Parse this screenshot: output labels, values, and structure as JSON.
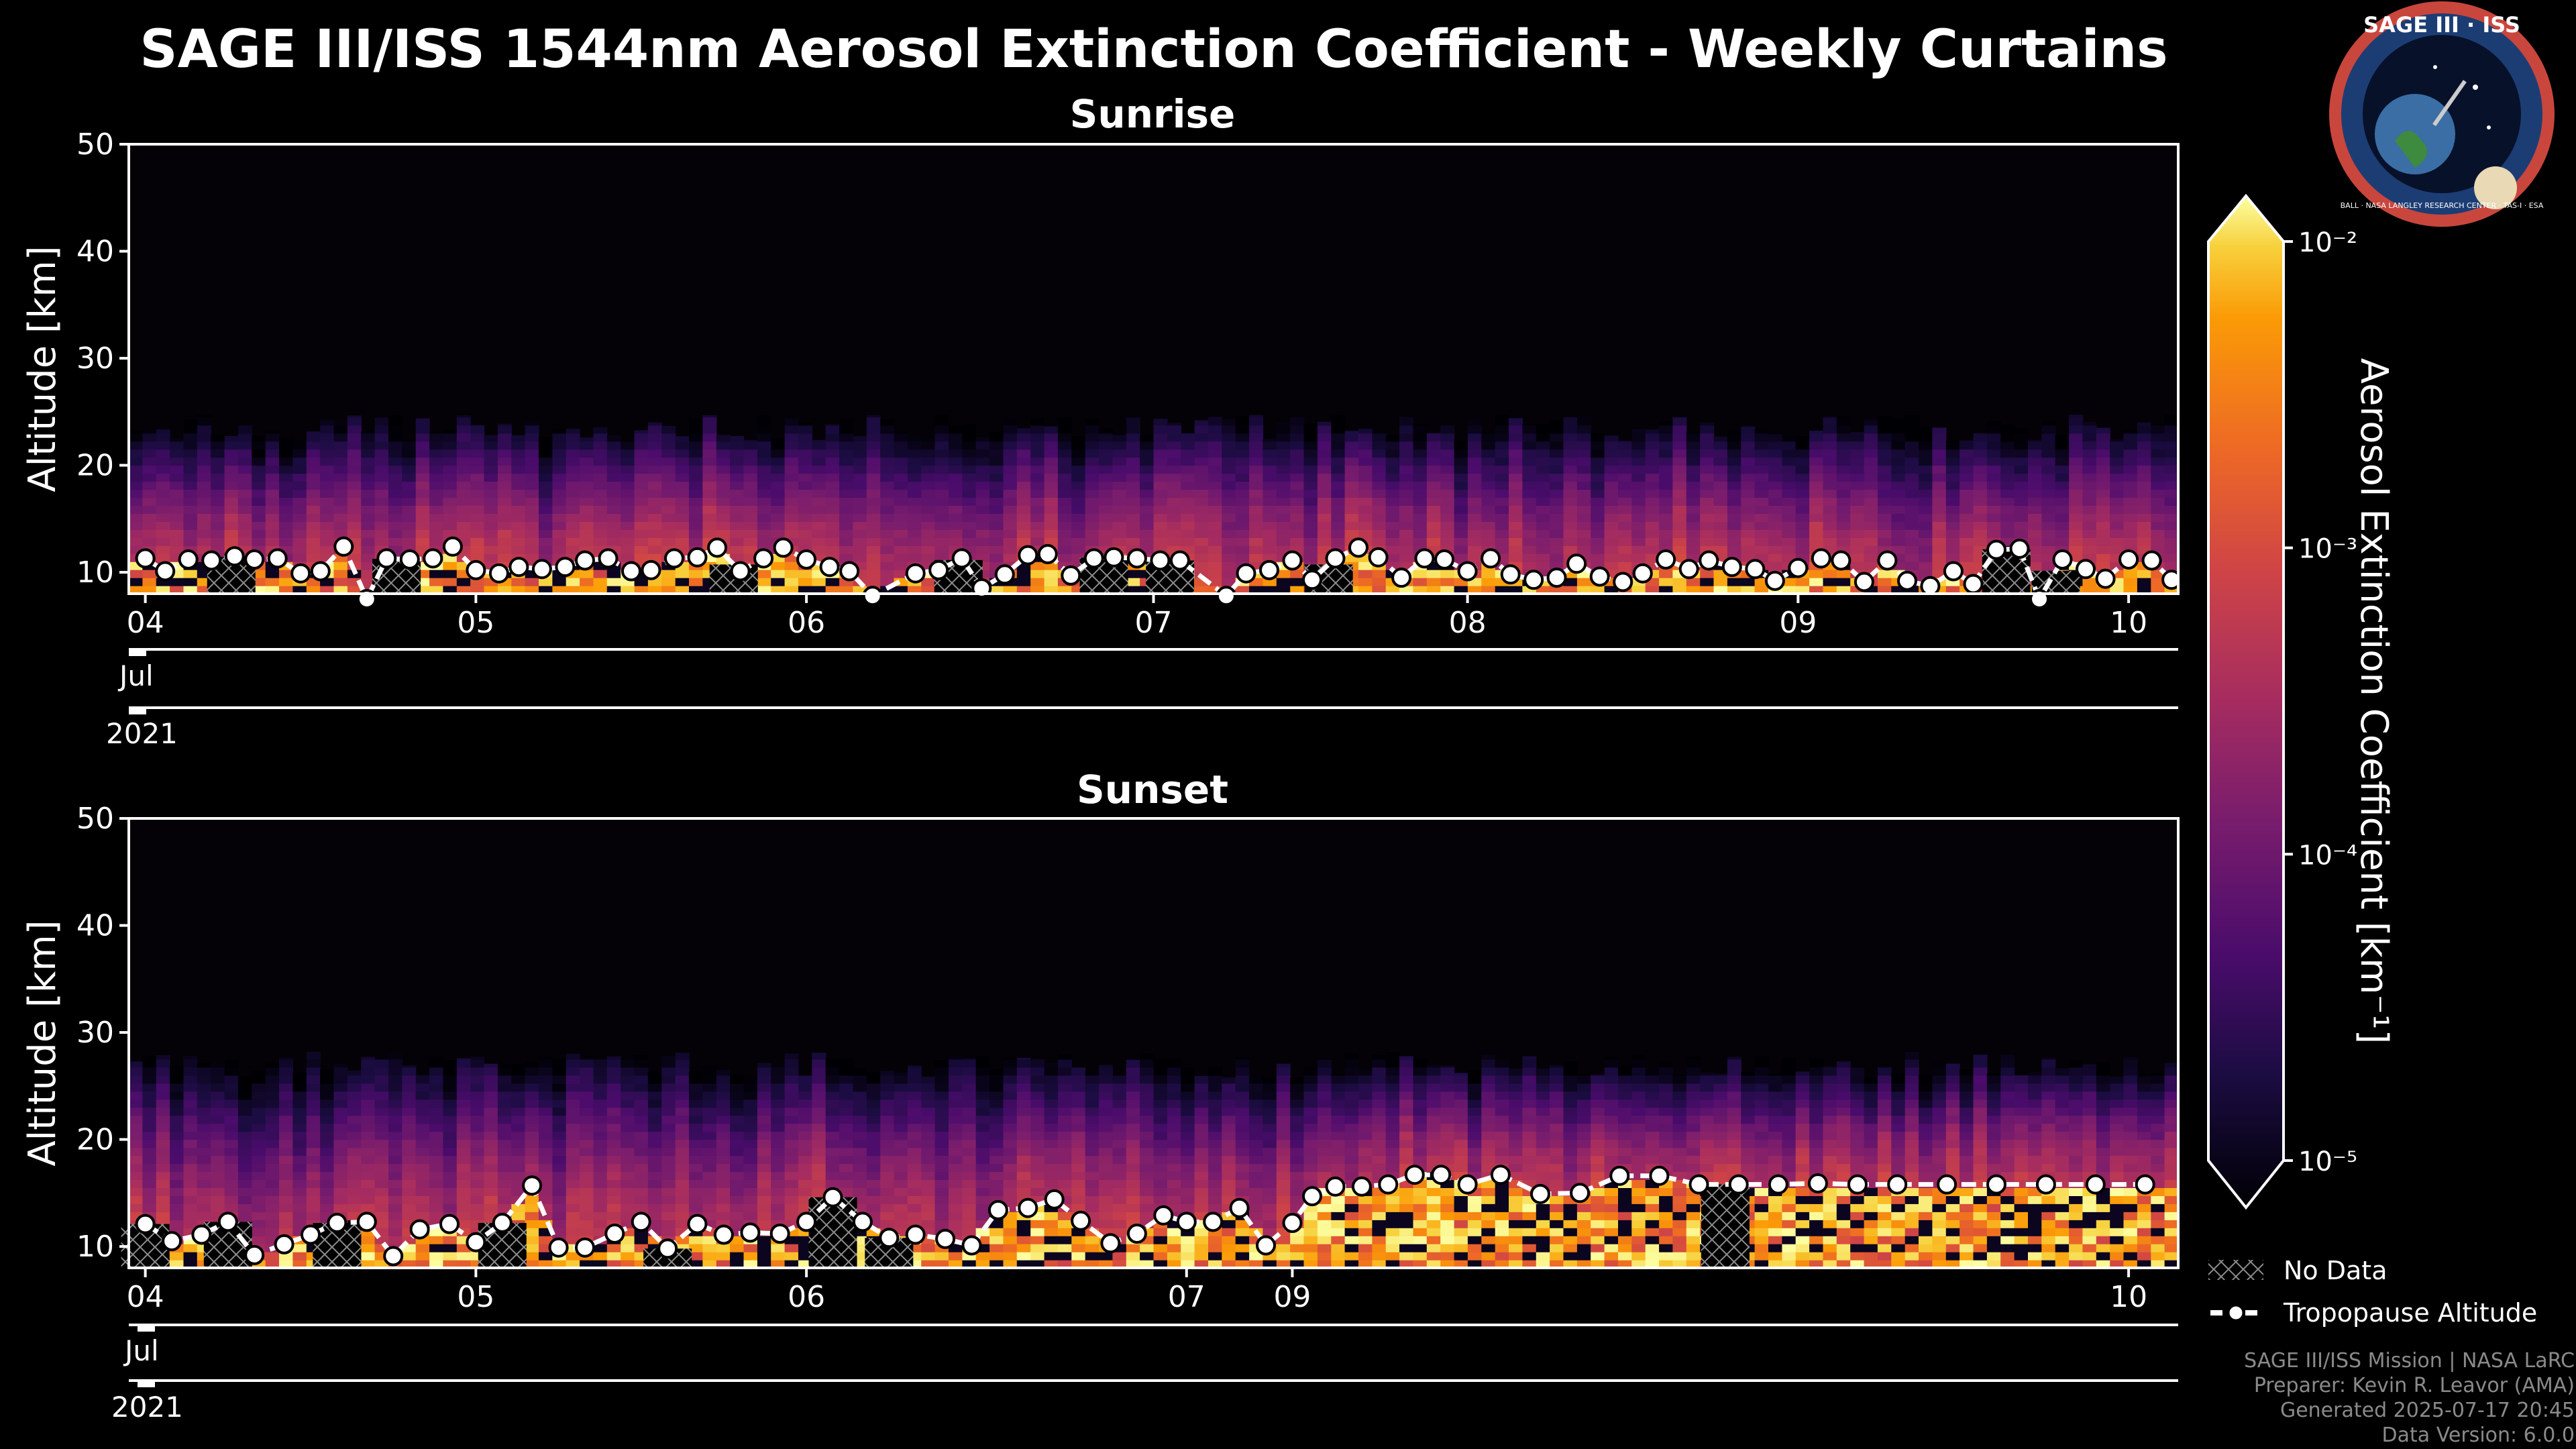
{
  "figure": {
    "title": "SAGE III/ISS 1544nm Aerosol Extinction Coefficient - Weekly Curtains",
    "logo": {
      "top_text": "SAGE III · ISS",
      "ring_text": "BALL · NASA LANGLEY RESEARCH CENTER · TAS-I · ESA"
    },
    "colorbar": {
      "label": "Aerosol Extinction Coefficient [km⁻¹]",
      "tick_labels": [
        "10⁻²",
        "10⁻³",
        "10⁻⁴",
        "10⁻⁵"
      ],
      "tick_values": [
        0.01,
        0.001,
        0.0001,
        1e-05
      ],
      "colormap": "inferno"
    },
    "legend": {
      "no_data": "No Data",
      "tropopause": "Tropopause Altitude"
    },
    "footer": [
      "SAGE III/ISS Mission | NASA LaRC",
      "Preparer: Kevin R. Leavor (AMA)",
      "Generated 2025-07-17 20:45",
      "Data Version: 6.0.0"
    ],
    "colors": {
      "background": "#000000",
      "text": "#ffffff",
      "footer": "#8a8a8a",
      "axis": "#ffffff"
    }
  },
  "chart_data": [
    {
      "type": "heatmap",
      "title": "Sunrise",
      "ylabel": "Altitude [km]",
      "ylim": [
        8,
        50
      ],
      "yticks": [
        10,
        20,
        30,
        40,
        50
      ],
      "x_range_days": [
        3.95,
        10.15
      ],
      "day_ticks": [
        {
          "label": "04",
          "day": 4.0
        },
        {
          "label": "05",
          "day": 5.0
        },
        {
          "label": "06",
          "day": 6.0
        },
        {
          "label": "07",
          "day": 7.05
        },
        {
          "label": "08",
          "day": 8.0
        },
        {
          "label": "09",
          "day": 9.0
        },
        {
          "label": "10",
          "day": 10.0
        }
      ],
      "month_label": "Jul",
      "year_label": "2021",
      "aerosol_top_km": 23.5,
      "tropopause": {
        "days": [
          4.0,
          4.06,
          4.13,
          4.2,
          4.27,
          4.33,
          4.4,
          4.47,
          4.53,
          4.6,
          4.67,
          4.73,
          4.8,
          4.87,
          4.93,
          5.0,
          5.07,
          5.13,
          5.2,
          5.27,
          5.33,
          5.4,
          5.47,
          5.53,
          5.6,
          5.67,
          5.73,
          5.8,
          5.87,
          5.93,
          6.0,
          6.07,
          6.13,
          6.2,
          6.33,
          6.4,
          6.47,
          6.53,
          6.6,
          6.67,
          6.73,
          6.8,
          6.87,
          6.93,
          7.0,
          7.07,
          7.13,
          7.27,
          7.33,
          7.4,
          7.47,
          7.53,
          7.6,
          7.67,
          7.73,
          7.8,
          7.87,
          7.93,
          8.0,
          8.07,
          8.13,
          8.2,
          8.27,
          8.33,
          8.4,
          8.47,
          8.53,
          8.6,
          8.67,
          8.73,
          8.8,
          8.87,
          8.93,
          9.0,
          9.07,
          9.13,
          9.2,
          9.27,
          9.33,
          9.4,
          9.47,
          9.53,
          9.6,
          9.67,
          9.73,
          9.8,
          9.87,
          9.93,
          10.0,
          10.07,
          10.13
        ],
        "altitudes_km": [
          11.3,
          10.1,
          11.2,
          11.1,
          11.5,
          11.2,
          11.3,
          9.9,
          10.1,
          12.4,
          7.5,
          11.3,
          11.2,
          11.3,
          12.4,
          10.2,
          9.9,
          10.5,
          10.3,
          10.5,
          11.1,
          11.3,
          10.1,
          10.2,
          11.3,
          11.4,
          12.3,
          10.1,
          11.3,
          12.3,
          11.2,
          10.5,
          10.1,
          7.8,
          9.9,
          10.2,
          11.3,
          8.5,
          9.8,
          11.6,
          11.7,
          9.7,
          11.3,
          11.4,
          11.3,
          11.1,
          11.1,
          7.8,
          9.9,
          10.2,
          11.1,
          9.3,
          11.3,
          12.3,
          11.4,
          9.5,
          11.3,
          11.2,
          10.1,
          11.3,
          9.8,
          9.3,
          9.5,
          10.8,
          9.6,
          9.1,
          9.9,
          11.2,
          10.3,
          11.1,
          10.5,
          10.3,
          9.2,
          10.4,
          11.3,
          11.1,
          9.1,
          11.1,
          9.2,
          8.7,
          10.1,
          8.9,
          12.1,
          12.2,
          7.5,
          11.2,
          10.3,
          9.4,
          11.2,
          11.1,
          9.3
        ]
      },
      "no_data_days": [
        4.26,
        4.76,
        5.78,
        6.46,
        6.9,
        7.1,
        7.58,
        9.63,
        9.78
      ]
    },
    {
      "type": "heatmap",
      "title": "Sunset",
      "ylabel": "Altitude [km]",
      "ylim": [
        8,
        50
      ],
      "yticks": [
        10,
        20,
        30,
        40,
        50
      ],
      "x_range_days": [
        3.95,
        10.15
      ],
      "day_ticks": [
        {
          "label": "04",
          "day": 4.0
        },
        {
          "label": "05",
          "day": 5.0
        },
        {
          "label": "06",
          "day": 6.0
        },
        {
          "label": "07",
          "day": 7.15
        },
        {
          "label": "09",
          "day": 7.47
        },
        {
          "label": "10",
          "day": 10.0
        }
      ],
      "month_label": "Jul",
      "year_label": "2021",
      "aerosol_top_km": 27.0,
      "tropopause": {
        "days": [
          4.0,
          4.08,
          4.17,
          4.25,
          4.33,
          4.42,
          4.5,
          4.58,
          4.67,
          4.75,
          4.83,
          4.92,
          5.0,
          5.08,
          5.17,
          5.25,
          5.33,
          5.42,
          5.5,
          5.58,
          5.67,
          5.75,
          5.83,
          5.92,
          6.0,
          6.08,
          6.17,
          6.25,
          6.33,
          6.42,
          6.5,
          6.58,
          6.67,
          6.75,
          6.83,
          6.92,
          7.0,
          7.08,
          7.15,
          7.23,
          7.31,
          7.39,
          7.47,
          7.53,
          7.6,
          7.68,
          7.76,
          7.84,
          7.92,
          8.0,
          8.1,
          8.22,
          8.34,
          8.46,
          8.58,
          8.7,
          8.82,
          8.94,
          9.06,
          9.18,
          9.3,
          9.45,
          9.6,
          9.75,
          9.9,
          10.05
        ],
        "altitudes_km": [
          12.1,
          10.5,
          11.1,
          12.3,
          9.2,
          10.2,
          11.1,
          12.2,
          12.3,
          9.1,
          11.6,
          12.1,
          10.4,
          12.2,
          15.7,
          9.9,
          9.9,
          11.2,
          12.3,
          9.8,
          12.1,
          11.1,
          11.3,
          11.2,
          12.3,
          14.6,
          12.3,
          10.8,
          11.1,
          10.7,
          10.1,
          13.4,
          13.6,
          14.4,
          12.4,
          10.3,
          11.2,
          12.9,
          12.3,
          12.3,
          13.6,
          10.1,
          12.2,
          14.7,
          15.6,
          15.6,
          15.8,
          16.7,
          16.7,
          15.8,
          16.7,
          14.9,
          15.0,
          16.6,
          16.6,
          15.8,
          15.8,
          15.8,
          15.9,
          15.8,
          15.8,
          15.8,
          15.8,
          15.8,
          15.8,
          15.8
        ],
        "comment": "days after the 8.0 entry are uniformly distributed between the 09 and 10 tick positions"
      },
      "no_data_days": [
        4.0,
        4.25,
        4.58,
        5.08,
        5.58,
        6.08,
        6.25,
        8.78
      ]
    }
  ]
}
